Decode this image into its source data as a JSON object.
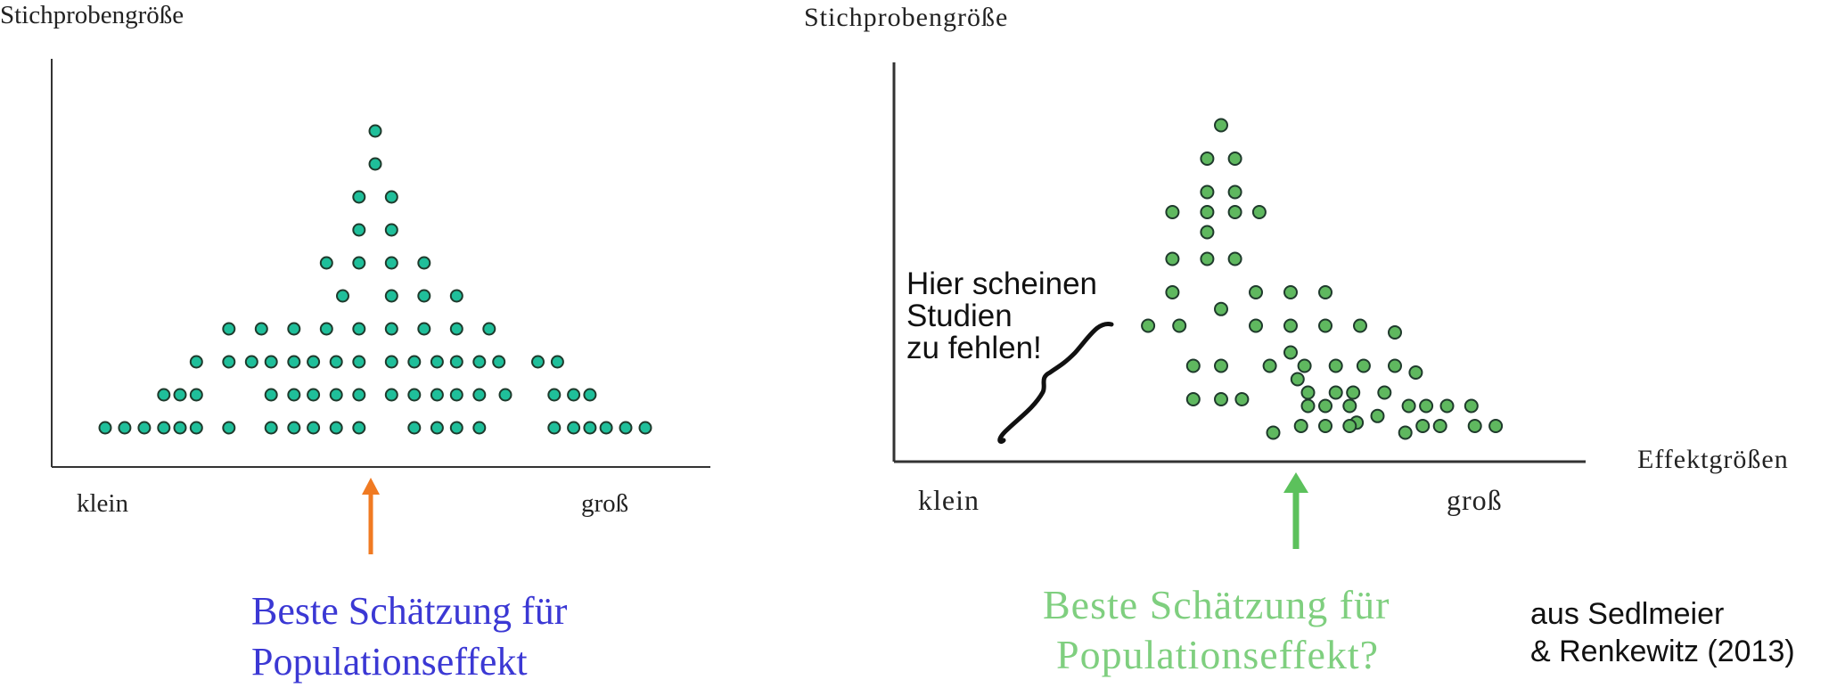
{
  "chart_data": [
    {
      "type": "scatter",
      "title": "",
      "ylabel": "Stichprobengröße",
      "xlabel": "",
      "x_end_labels": [
        "klein",
        "groß"
      ],
      "arrow_color": "#f07a22",
      "dot_color": "#1fbf9a",
      "caption_lines": [
        "Beste Schätzung für",
        "Populationseffekt"
      ],
      "caption_color": "#3b38d4",
      "points": [
        [
          0,
          9
        ],
        [
          0,
          8
        ],
        [
          -0.5,
          7
        ],
        [
          0.5,
          7
        ],
        [
          -0.5,
          6
        ],
        [
          0.5,
          6
        ],
        [
          -1.5,
          5
        ],
        [
          -0.5,
          5
        ],
        [
          0.5,
          5
        ],
        [
          1.5,
          5
        ],
        [
          -1,
          4
        ],
        [
          0.5,
          4
        ],
        [
          1.5,
          4
        ],
        [
          2.5,
          4
        ],
        [
          -4.5,
          3
        ],
        [
          -3.5,
          3
        ],
        [
          -2.5,
          3
        ],
        [
          -1.5,
          3
        ],
        [
          -0.5,
          3
        ],
        [
          0.5,
          3
        ],
        [
          1.5,
          3
        ],
        [
          2.5,
          3
        ],
        [
          3.5,
          3
        ],
        [
          -5.5,
          2
        ],
        [
          -4.5,
          2
        ],
        [
          -3.8,
          2
        ],
        [
          -3.2,
          2
        ],
        [
          -2.5,
          2
        ],
        [
          -1.9,
          2
        ],
        [
          -1.2,
          2
        ],
        [
          -0.5,
          2
        ],
        [
          0.5,
          2
        ],
        [
          1.2,
          2
        ],
        [
          1.9,
          2
        ],
        [
          2.5,
          2
        ],
        [
          3.2,
          2
        ],
        [
          3.8,
          2
        ],
        [
          5,
          2
        ],
        [
          5.6,
          2
        ],
        [
          -6.5,
          1
        ],
        [
          -6,
          1
        ],
        [
          -5.5,
          1
        ],
        [
          -3.2,
          1
        ],
        [
          -2.5,
          1
        ],
        [
          -1.9,
          1
        ],
        [
          -1.2,
          1
        ],
        [
          -0.5,
          1
        ],
        [
          0.5,
          1
        ],
        [
          1.2,
          1
        ],
        [
          1.9,
          1
        ],
        [
          2.5,
          1
        ],
        [
          3.2,
          1
        ],
        [
          4,
          1
        ],
        [
          5.5,
          1
        ],
        [
          6.1,
          1
        ],
        [
          6.6,
          1
        ],
        [
          -8.3,
          0
        ],
        [
          -7.7,
          0
        ],
        [
          -7.1,
          0
        ],
        [
          -6.5,
          0
        ],
        [
          -6,
          0
        ],
        [
          -5.5,
          0
        ],
        [
          -4.5,
          0
        ],
        [
          -3.2,
          0
        ],
        [
          -2.5,
          0
        ],
        [
          -1.9,
          0
        ],
        [
          -1.2,
          0
        ],
        [
          -0.5,
          0
        ],
        [
          1.2,
          0
        ],
        [
          1.9,
          0
        ],
        [
          2.5,
          0
        ],
        [
          3.2,
          0
        ],
        [
          5.5,
          0
        ],
        [
          6.1,
          0
        ],
        [
          6.6,
          0
        ],
        [
          7.1,
          0
        ],
        [
          7.7,
          0
        ],
        [
          8.3,
          0
        ]
      ]
    },
    {
      "type": "scatter",
      "title": "",
      "ylabel": "Stichprobengröße",
      "xlabel": "Effektgrößen",
      "x_end_labels": [
        "klein",
        "groß"
      ],
      "arrow_color": "#5cc15c",
      "dot_color": "#5fb85f",
      "caption_lines": [
        "Beste Schätzung für",
        "Populationseffekt?"
      ],
      "caption_color": "#7fcf7f",
      "annotation_lines": [
        "Hier scheinen",
        "Studien",
        "zu fehlen!"
      ],
      "points": [
        [
          0,
          9
        ],
        [
          -0.4,
          8
        ],
        [
          0.4,
          8
        ],
        [
          -0.4,
          7
        ],
        [
          0.4,
          7
        ],
        [
          -1.4,
          6.4
        ],
        [
          -0.4,
          6.4
        ],
        [
          0.4,
          6.4
        ],
        [
          1.1,
          6.4
        ],
        [
          -0.4,
          5.8
        ],
        [
          -1.4,
          5
        ],
        [
          -0.4,
          5
        ],
        [
          0.4,
          5
        ],
        [
          -1.4,
          4
        ],
        [
          1,
          4
        ],
        [
          2,
          4
        ],
        [
          3,
          4
        ],
        [
          0,
          3.5
        ],
        [
          -2.1,
          3
        ],
        [
          -1.2,
          3
        ],
        [
          1,
          3
        ],
        [
          2,
          3
        ],
        [
          3,
          3
        ],
        [
          4,
          3
        ],
        [
          5,
          2.8
        ],
        [
          2,
          2.2
        ],
        [
          -0.8,
          1.8
        ],
        [
          0,
          1.8
        ],
        [
          1.4,
          1.8
        ],
        [
          2.4,
          1.8
        ],
        [
          3.3,
          1.8
        ],
        [
          4.1,
          1.8
        ],
        [
          5,
          1.8
        ],
        [
          5.6,
          1.6
        ],
        [
          2.2,
          1.4
        ],
        [
          2.5,
          1
        ],
        [
          3.3,
          1
        ],
        [
          3.8,
          1
        ],
        [
          4.7,
          1
        ],
        [
          -0.8,
          0.8
        ],
        [
          0,
          0.8
        ],
        [
          0.6,
          0.8
        ],
        [
          2.5,
          0.6
        ],
        [
          3,
          0.6
        ],
        [
          3.7,
          0.6
        ],
        [
          5.4,
          0.6
        ],
        [
          5.9,
          0.6
        ],
        [
          6.5,
          0.6
        ],
        [
          4.5,
          0.3
        ],
        [
          7.2,
          0.6
        ],
        [
          3.9,
          0.1
        ],
        [
          1.5,
          -0.2
        ],
        [
          2.3,
          0
        ],
        [
          3,
          0
        ],
        [
          3.7,
          0
        ],
        [
          5.3,
          -0.2
        ],
        [
          5.8,
          0
        ],
        [
          6.3,
          0
        ],
        [
          7.3,
          0
        ],
        [
          7.9,
          0
        ]
      ]
    }
  ],
  "source_lines": [
    "aus Sedlmeier",
    "& Renkewitz (2013)"
  ]
}
